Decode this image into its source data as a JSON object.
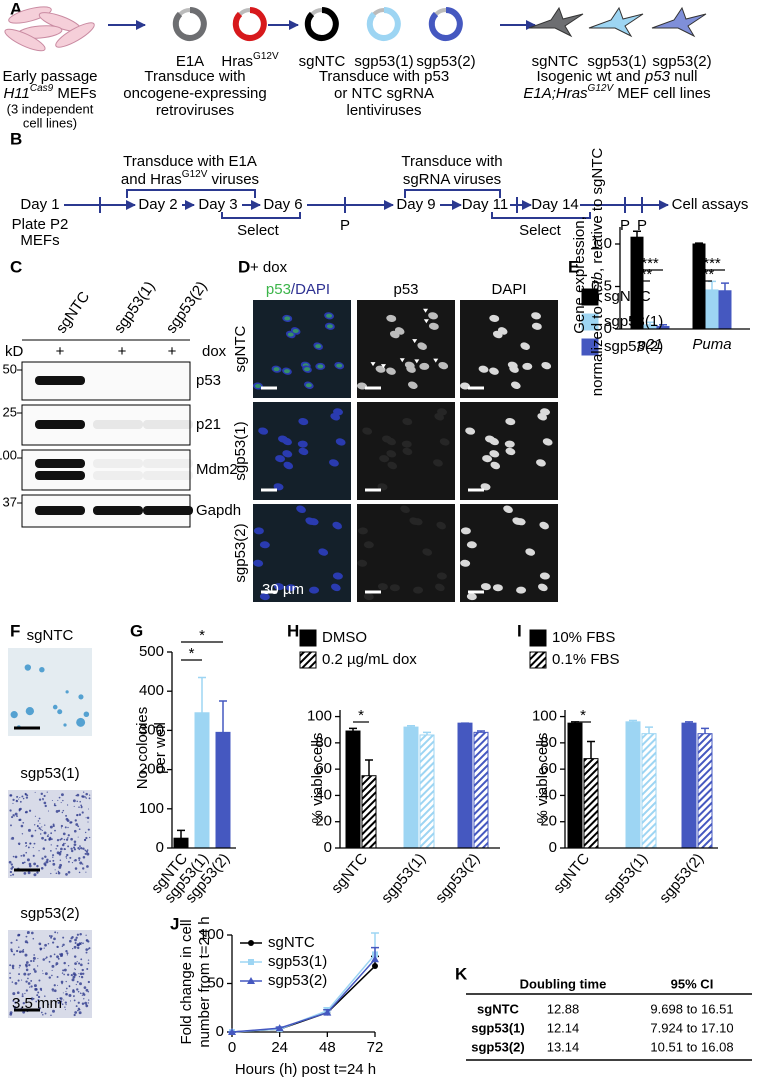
{
  "panel_labels": [
    "A",
    "B",
    "C",
    "D",
    "E",
    "F",
    "G",
    "H",
    "I",
    "J",
    "K"
  ],
  "panel_a": {
    "e1a": "E1A",
    "hras": "Hras",
    "hras_sup": "G12V",
    "vectors": [
      "sgNTC",
      "sgp53(1)",
      "sgp53(2)"
    ],
    "cell_lines": [
      "sgNTC",
      "sgp53(1)",
      "sgp53(2)"
    ],
    "step_1": {
      "line_1": "Early passage",
      "line_2_italic": "H11",
      "line_2_sup": "Cas9",
      "line_2_rest": " MEFs",
      "line_3": "(3 independent",
      "line_4": "cell lines)"
    },
    "step_2": [
      "Transduce with",
      "oncogene-expressing",
      "retroviruses"
    ],
    "step_3": [
      "Transduce with p53",
      "or NTC sgRNA",
      "lentiviruses"
    ],
    "step_4": {
      "line_1_a": "Isogenic wt and ",
      "line_1_italic": "p53",
      "line_1_b": " null",
      "line_2_italic": "E1A;Hras",
      "line_2_sup": "G12V",
      "line_2_rest": " MEF cell lines"
    }
  },
  "panel_b": {
    "days": [
      "Day 1",
      "Day 2",
      "Day 3",
      "Day 6",
      "Day 9",
      "Day 11",
      "Day 14",
      "Cell assays"
    ],
    "plate": [
      "Plate P2",
      "MEFs"
    ],
    "transduce_1": {
      "line_1": "Transduce with E1A",
      "line_2_a": "and Hras",
      "line_2_sup": "G12V",
      "line_2_b": " viruses"
    },
    "transduce_2": [
      "Transduce  with",
      "sgRNA viruses"
    ],
    "select": [
      "Select",
      "Select"
    ],
    "passage": [
      "P",
      "P",
      "P"
    ]
  },
  "panel_c": {
    "lanes": [
      "sgNTC",
      "sgp53(1)",
      "sgp53(2)"
    ],
    "kd": "kD",
    "dox_marks": [
      "+",
      "+",
      "+"
    ],
    "dox": "dox",
    "blots": [
      {
        "marker": "50",
        "protein": "p53"
      },
      {
        "marker": "25",
        "protein": "p21"
      },
      {
        "marker": "100",
        "protein": "Mdm2"
      },
      {
        "marker": "37",
        "protein": "Gapdh"
      }
    ]
  },
  "panel_d": {
    "condition": "+ dox",
    "merge_a": "p53",
    "merge_b": "/DAPI",
    "p53": "p53",
    "dapi": "DAPI",
    "rows": [
      "sgNTC",
      "sgp53(1)",
      "sgp53(2)"
    ],
    "scale": "30 µm"
  },
  "panel_f": {
    "rows": [
      "sgNTC",
      "sgp53(1)",
      "sgp53(2)"
    ],
    "scale": "3.5 mm"
  },
  "chart_data": [
    {
      "type": "bar",
      "ylabel": {
        "line_1": "Gene expression,",
        "line_2_a": "normalized to ",
        "line_2_italic": "Actb",
        "line_2_b": ", relative to sgNTC"
      },
      "categories": [
        "p21",
        "Puma"
      ],
      "series": [
        {
          "name": "sgNTC",
          "color": "#000000",
          "values": [
            1.08,
            1.0
          ],
          "errors": [
            0.07,
            0.01
          ]
        },
        {
          "name": "sgp53(1)",
          "color": "#9dd5f3",
          "values": [
            0.05,
            0.46
          ],
          "errors": [
            0.03,
            0.1
          ]
        },
        {
          "name": "sgp53(2)",
          "color": "#4558c0",
          "values": [
            0.03,
            0.45
          ],
          "errors": [
            0.02,
            0.09
          ]
        }
      ],
      "ylim": [
        0,
        1.2
      ],
      "yticks": [
        0,
        0.5,
        {
          "value": 1,
          "label": "1.0"
        }
      ],
      "legend": "top-right",
      "annotations": [
        "***",
        "***",
        "***",
        "***"
      ]
    },
    {
      "type": "bar",
      "ylabel": [
        "No. colonies",
        "per well"
      ],
      "categories": [
        "sgNTC",
        "sgp53(1)",
        "sgp53(2)"
      ],
      "colors": [
        "#000000",
        "#9dd5f3",
        "#4558c0"
      ],
      "values": [
        25,
        345,
        295
      ],
      "errors": [
        20,
        90,
        80
      ],
      "ylim": [
        0,
        500
      ],
      "yticks": [
        0,
        100,
        200,
        300,
        400,
        500
      ],
      "annotations": [
        "*",
        "*"
      ]
    },
    {
      "type": "bar",
      "ylabel": "% viable cells",
      "categories": [
        "sgNTC",
        "sgp53(1)",
        "sgp53(2)"
      ],
      "colors": [
        "#000000",
        "#9dd5f3",
        "#4558c0"
      ],
      "series": [
        {
          "name": "DMSO",
          "color": "#000000",
          "hatch": false,
          "values": [
            89,
            92,
            95
          ],
          "errors": [
            2,
            1,
            0
          ]
        },
        {
          "name": "0.2 µg/mL dox",
          "color": "#000000",
          "hatch": true,
          "values": [
            55,
            86,
            88
          ],
          "errors": [
            12,
            2,
            1
          ]
        }
      ],
      "ylim": [
        0,
        105
      ],
      "yticks": [
        0,
        20,
        40,
        60,
        80,
        100
      ],
      "legend": "top-left",
      "annotations": [
        "*"
      ]
    },
    {
      "type": "bar",
      "ylabel": "% viable cells",
      "categories": [
        "sgNTC",
        "sgp53(1)",
        "sgp53(2)"
      ],
      "colors": [
        "#000000",
        "#9dd5f3",
        "#4558c0"
      ],
      "series": [
        {
          "name": "10% FBS",
          "color": "#000000",
          "hatch": false,
          "values": [
            95,
            96,
            95
          ],
          "errors": [
            1,
            1,
            1
          ]
        },
        {
          "name": "0.1% FBS",
          "color": "#000000",
          "hatch": true,
          "values": [
            68,
            87,
            87
          ],
          "errors": [
            13,
            5,
            4
          ]
        }
      ],
      "ylim": [
        0,
        105
      ],
      "yticks": [
        0,
        20,
        40,
        60,
        80,
        100
      ],
      "legend": "top-left",
      "annotations": [
        "*"
      ]
    },
    {
      "type": "line",
      "ylabel": [
        "Fold change in cell",
        "number from t=24 h"
      ],
      "xlabel": "Hours (h) post t=24 h",
      "x": [
        0,
        24,
        48,
        72
      ],
      "series": [
        {
          "name": "sgNTC",
          "color": "#000000",
          "marker": "circle",
          "values": [
            0,
            3,
            20,
            68
          ],
          "errors": [
            0,
            1,
            3,
            10
          ]
        },
        {
          "name": "sgp53(1)",
          "color": "#9dd5f3",
          "marker": "square",
          "values": [
            0,
            3,
            22,
            80
          ],
          "errors": [
            0,
            1,
            3,
            22
          ]
        },
        {
          "name": "sgp53(2)",
          "color": "#4558c0",
          "marker": "triangle",
          "values": [
            0,
            4,
            20,
            75
          ],
          "errors": [
            0,
            1,
            3,
            12
          ]
        }
      ],
      "xlim": [
        0,
        72
      ],
      "ylim": [
        0,
        100
      ],
      "xticks": [
        0,
        24,
        48,
        72
      ],
      "yticks": [
        0,
        50,
        100
      ],
      "legend": "top-left"
    }
  ],
  "table": {
    "header": [
      "Doubling time",
      "95% CI"
    ],
    "rows": [
      [
        "sgNTC",
        12.88,
        "9.698 to 16.51"
      ],
      [
        "sgp53(1)",
        12.14,
        "7.924 to 17.10"
      ],
      [
        "sgp53(2)",
        13.14,
        "10.51 to 16.08"
      ]
    ]
  }
}
